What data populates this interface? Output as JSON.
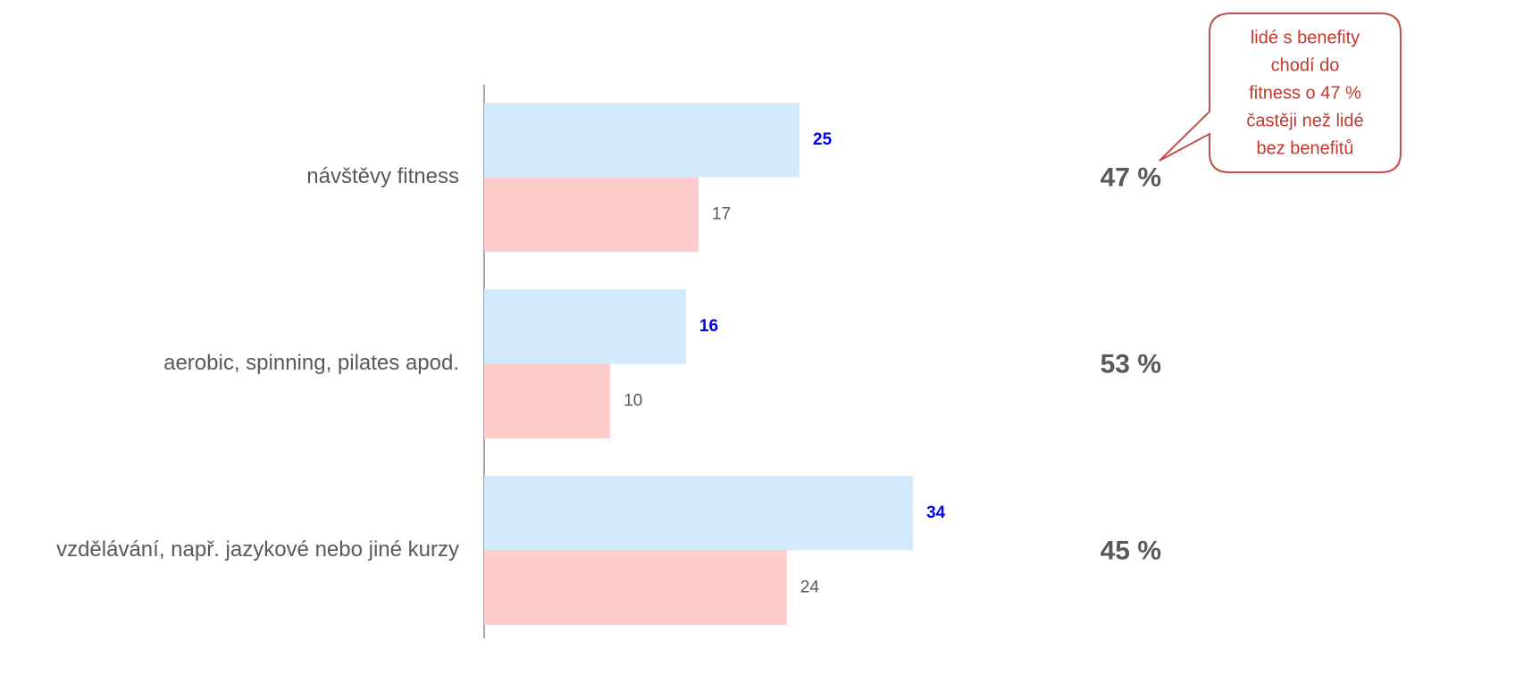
{
  "chart_data": {
    "type": "bar",
    "orientation": "horizontal",
    "categories": [
      "návštěvy fitness",
      "aerobic, spinning, pilates apod.",
      "vzdělávání, např. jazykové nebo jiné kurzy"
    ],
    "series": [
      {
        "color": "#d3eafc",
        "label_color": "#0000ee",
        "values": [
          25,
          16,
          34
        ]
      },
      {
        "color": "#ffcccc",
        "label_color": "#595959",
        "values": [
          17,
          10,
          24
        ]
      }
    ],
    "annotations": [
      "47 %",
      "53 %",
      "45 %"
    ],
    "callout": [
      "lidé s benefity",
      "chodí do",
      "fitness o 47 %",
      "častěji než lidé",
      "bez benefitů"
    ]
  }
}
